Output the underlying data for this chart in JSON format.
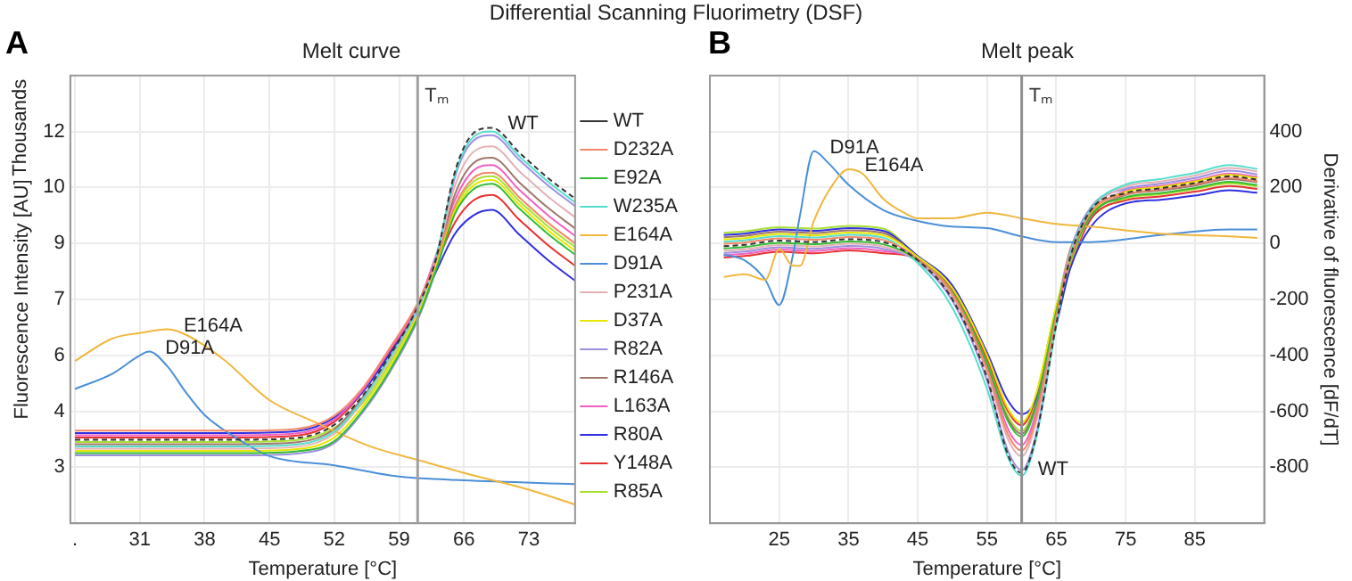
{
  "chart_data": [
    {
      "type": "line",
      "title": "Differential Scanning Fluorimetry (DSF)",
      "subtitle": "Melt curve",
      "xlabel": "Temperature [°C]",
      "ylabel": "Fluorescence Intensity [AU]",
      "annotations": [
        "A",
        "Thousands",
        {
          "text": "WT",
          "x": 69,
          "y": 12.1
        },
        {
          "text": "E164A",
          "x": 34,
          "y": 6.7
        },
        {
          "text": "D91A",
          "x": 32,
          "y": 6.1
        }
      ],
      "x": [
        24,
        30,
        36,
        42,
        48,
        52,
        55,
        58,
        61,
        63,
        65,
        67,
        69,
        72,
        75,
        78
      ],
      "xlim": [
        23.5,
        78
      ],
      "xticks": [
        {
          "value": 24,
          "label": "."
        },
        31,
        38,
        45,
        52,
        59,
        66,
        73
      ],
      "ylim": [
        1.5,
        13.5
      ],
      "yticks": [
        3,
        {
          "value": 4.5,
          "label": "4"
        },
        6,
        {
          "value": 7.5,
          "label": "7"
        },
        9,
        {
          "value": 10.5,
          "label": "10"
        },
        12
      ],
      "grid": true,
      "legend": "right",
      "marker": "none",
      "ref_lines": [
        {
          "axis": "x",
          "value": 61,
          "label": "Tₘ",
          "color": "#a0a0a0"
        }
      ],
      "series": [
        {
          "name": "WT",
          "color": "#333333",
          "line_style": "dashed",
          "values": [
            3.74,
            3.74,
            3.74,
            3.74,
            3.79,
            4.14,
            4.9,
            6.0,
            7.3,
            8.6,
            10.9,
            11.95,
            12.1,
            11.43,
            10.77,
            10.2
          ]
        },
        {
          "name": "D232A",
          "color": "#f4876a",
          "values": [
            3.98,
            3.98,
            3.98,
            3.98,
            4.03,
            4.38,
            5.1,
            6.2,
            7.4,
            8.55,
            10.0,
            10.75,
            10.9,
            10.23,
            9.57,
            9.0
          ]
        },
        {
          "name": "E92A",
          "color": "#33bb33",
          "values": [
            3.38,
            3.38,
            3.38,
            3.38,
            3.43,
            3.7,
            4.5,
            5.6,
            7.0,
            8.3,
            9.78,
            10.45,
            10.6,
            9.93,
            9.27,
            8.7
          ]
        },
        {
          "name": "W235A",
          "color": "#55ddcc",
          "values": [
            3.56,
            3.56,
            3.56,
            3.56,
            3.61,
            3.96,
            4.8,
            5.95,
            7.25,
            8.65,
            10.83,
            11.85,
            12.0,
            11.33,
            10.67,
            10.1
          ]
        },
        {
          "name": "E164A",
          "color": "#f0b73c",
          "x": [
            24,
            28,
            31,
            34,
            36,
            40,
            45,
            50,
            56,
            61,
            66,
            73,
            78
          ],
          "values": [
            5.85,
            6.45,
            6.6,
            6.7,
            6.55,
            5.9,
            4.8,
            4.2,
            3.55,
            3.2,
            2.85,
            2.4,
            2.0
          ]
        },
        {
          "name": "D91A",
          "color": "#4a8fd8",
          "x": [
            24,
            28,
            31,
            32,
            34,
            36,
            38,
            42,
            45,
            52,
            59,
            66,
            78
          ],
          "values": [
            5.1,
            5.5,
            6.0,
            6.1,
            5.7,
            5.0,
            4.4,
            3.7,
            3.3,
            3.05,
            2.75,
            2.65,
            2.55
          ]
        },
        {
          "name": "P231A",
          "color": "#e5b0b4",
          "values": [
            3.5,
            3.5,
            3.5,
            3.5,
            3.55,
            3.9,
            4.75,
            5.9,
            7.2,
            8.55,
            10.53,
            11.45,
            11.6,
            10.93,
            10.27,
            9.7
          ]
        },
        {
          "name": "D37A",
          "color": "#e6e600",
          "values": [
            3.44,
            3.44,
            3.44,
            3.44,
            3.49,
            3.8,
            4.6,
            5.7,
            7.1,
            8.45,
            9.85,
            10.55,
            10.7,
            10.03,
            9.37,
            8.8
          ]
        },
        {
          "name": "R82A",
          "color": "#9d8fe0",
          "values": [
            3.32,
            3.32,
            3.32,
            3.32,
            3.37,
            3.65,
            4.45,
            5.55,
            6.95,
            8.35,
            10.75,
            11.75,
            11.9,
            11.23,
            10.57,
            10.0
          ]
        },
        {
          "name": "R146A",
          "color": "#a0766a",
          "values": [
            3.62,
            3.62,
            3.62,
            3.62,
            3.67,
            4.02,
            4.85,
            5.95,
            7.25,
            8.5,
            10.3,
            11.15,
            11.3,
            10.63,
            9.97,
            9.4
          ]
        },
        {
          "name": "L163A",
          "color": "#f060c0",
          "values": [
            3.86,
            3.86,
            3.86,
            3.86,
            3.91,
            4.28,
            5.05,
            6.15,
            7.35,
            8.7,
            10.15,
            10.95,
            11.1,
            10.43,
            9.77,
            9.2
          ]
        },
        {
          "name": "R80A",
          "color": "#3030e0",
          "values": [
            3.92,
            3.92,
            3.92,
            3.92,
            3.97,
            4.33,
            5.0,
            6.05,
            7.2,
            8.25,
            9.25,
            9.75,
            9.9,
            9.23,
            8.57,
            8.0
          ]
        },
        {
          "name": "Y148A",
          "color": "#e83030",
          "values": [
            3.8,
            3.8,
            3.8,
            3.8,
            3.85,
            4.22,
            5.0,
            6.1,
            7.3,
            8.45,
            9.55,
            10.15,
            10.3,
            9.63,
            8.97,
            8.4
          ]
        },
        {
          "name": "R85A",
          "color": "#a8e030",
          "values": [
            3.68,
            3.68,
            3.68,
            3.68,
            3.73,
            4.05,
            4.7,
            5.8,
            7.15,
            8.4,
            9.93,
            10.65,
            10.8,
            10.13,
            9.47,
            8.9
          ]
        }
      ]
    },
    {
      "type": "line",
      "subtitle": "Melt peak",
      "xlabel": "Temperature [°C]",
      "ylabel": "Derivative of fluorescence [dF/dT]",
      "annotations": [
        "B",
        {
          "text": "WT",
          "x": 60,
          "y": -820
        },
        {
          "text": "D91A",
          "x": 30,
          "y": 330
        },
        {
          "text": "E164A",
          "x": 35,
          "y": 265
        }
      ],
      "x": [
        17,
        20,
        25,
        30,
        35,
        40,
        45,
        50,
        55,
        58,
        60,
        62,
        65,
        67,
        70,
        75,
        80,
        85,
        90,
        94
      ],
      "xlim": [
        15,
        95
      ],
      "xticks": [
        25,
        35,
        45,
        55,
        65,
        75,
        85
      ],
      "ylim": [
        -1000,
        600
      ],
      "yticks": [
        {
          "value": 600,
          "label": null
        },
        400,
        200,
        0,
        -200,
        -400,
        -600,
        -800,
        {
          "value": -1000,
          "label": null
        }
      ],
      "grid": true,
      "marker": "none",
      "ref_lines": [
        {
          "axis": "x",
          "value": 60,
          "label": "Tₘ",
          "color": "#909090"
        }
      ],
      "series": [
        {
          "color": "#333333",
          "line_style": "dashed",
          "values": [
            -10,
            -5,
            10,
            5,
            15,
            5,
            -60,
            -200,
            -480,
            -754,
            -820,
            -697,
            -287,
            -50,
            120,
            180,
            197,
            216,
            240,
            228
          ]
        },
        {
          "color": "#f4876a",
          "values": [
            -2,
            3,
            18,
            13,
            23,
            13,
            -55,
            -180,
            -450,
            -681,
            -740,
            -629,
            -259,
            -56,
            112,
            176,
            193,
            212,
            235,
            223
          ]
        },
        {
          "color": "#33bb33",
          "values": [
            -18,
            -13,
            2,
            -3,
            7,
            -3,
            -58,
            -175,
            -430,
            -635,
            -690,
            -587,
            -242,
            -62,
            100,
            165,
            180,
            198,
            220,
            209
          ]
        },
        {
          "color": "#55ddcc",
          "values": [
            6,
            11,
            26,
            21,
            31,
            21,
            -70,
            -230,
            -520,
            -764,
            -830,
            -706,
            -291,
            -44,
            124,
            210,
            230,
            252,
            280,
            266
          ]
        },
        {
          "color": "#f0b73c",
          "x": [
            17,
            20,
            23,
            25,
            27,
            28,
            30,
            33,
            35,
            37,
            40,
            43,
            45,
            50,
            55,
            60,
            65,
            70,
            80,
            90,
            94
          ],
          "values": [
            -120,
            -110,
            -130,
            -20,
            -80,
            -80,
            80,
            220,
            265,
            250,
            160,
            110,
            90,
            90,
            110,
            90,
            70,
            60,
            35,
            25,
            20
          ]
        },
        {
          "color": "#4a8fd8",
          "x": [
            17,
            20,
            23,
            25,
            27,
            28,
            30,
            32,
            35,
            40,
            45,
            50,
            55,
            60,
            65,
            70,
            80,
            90,
            94
          ],
          "values": [
            -40,
            -60,
            -130,
            -220,
            -40,
            100,
            330,
            290,
            210,
            120,
            80,
            60,
            55,
            25,
            5,
            5,
            30,
            50,
            50
          ]
        },
        {
          "color": "#e5b0b4",
          "values": [
            -26,
            -21,
            -6,
            -11,
            -1,
            -11,
            -62,
            -190,
            -460,
            -699,
            -760,
            -646,
            -266,
            -38,
            116,
            203,
            221,
            243,
            270,
            257
          ]
        },
        {
          "color": "#e6e600",
          "values": [
            14,
            19,
            34,
            29,
            39,
            29,
            -48,
            -160,
            -400,
            -589,
            -640,
            -544,
            -224,
            -68,
            104,
            184,
            201,
            221,
            245,
            233
          ]
        },
        {
          "color": "#9d8fe0",
          "values": [
            -34,
            -29,
            -14,
            -19,
            -9,
            -19,
            -65,
            -205,
            -490,
            -740,
            -810,
            -690,
            -280,
            -32,
            130,
            195,
            213,
            234,
            260,
            247
          ]
        },
        {
          "color": "#a0766a",
          "values": [
            22,
            27,
            42,
            37,
            47,
            37,
            -52,
            -185,
            -430,
            -626,
            -680,
            -578,
            -238,
            -74,
            96,
            173,
            189,
            207,
            230,
            219
          ]
        },
        {
          "color": "#f060c0",
          "values": [
            -42,
            -37,
            -22,
            -27,
            -17,
            -27,
            -57,
            -178,
            -440,
            -662,
            -720,
            -612,
            -252,
            -26,
            108,
            188,
            205,
            225,
            250,
            238
          ]
        },
        {
          "color": "#3030e0",
          "values": [
            30,
            35,
            50,
            45,
            55,
            45,
            -45,
            -150,
            -390,
            -561,
            -610,
            -560,
            -290,
            -90,
            60,
            143,
            156,
            171,
            190,
            181
          ]
        },
        {
          "color": "#e83030",
          "values": [
            -50,
            -45,
            -30,
            -35,
            -25,
            -35,
            -53,
            -165,
            -410,
            -598,
            -650,
            -553,
            -228,
            -80,
            88,
            154,
            168,
            185,
            205,
            195
          ]
        },
        {
          "color": "#a8e030",
          "values": [
            38,
            43,
            58,
            53,
            63,
            53,
            -50,
            -170,
            -420,
            -616,
            -670,
            -570,
            -235,
            -20,
            92,
            161,
            176,
            194,
            215,
            204
          ]
        }
      ]
    }
  ]
}
